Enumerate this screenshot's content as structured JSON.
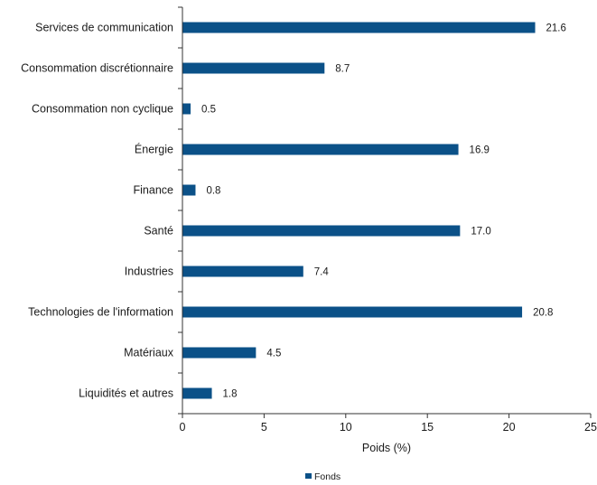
{
  "chart_data": {
    "type": "bar",
    "orientation": "horizontal",
    "categories": [
      "Services de communication",
      "Consommation discrétionnaire",
      "Consommation non cyclique",
      "Énergie",
      "Finance",
      "Santé",
      "Industries",
      "Technologies de l'information",
      "Matériaux",
      "Liquidités et autres"
    ],
    "series": [
      {
        "name": "Fonds",
        "color": "#0b5188",
        "values": [
          21.6,
          8.7,
          0.5,
          16.9,
          0.8,
          17.0,
          7.4,
          20.8,
          4.5,
          1.8
        ],
        "labels": [
          "21.6",
          "8.7",
          "0.5",
          "16.9",
          "0.8",
          "17.0",
          "7.4",
          "20.8",
          "4.5",
          "1.8"
        ]
      }
    ],
    "xlabel": "Poids (%)",
    "xlim": [
      0,
      25
    ],
    "xticks": [
      0,
      5,
      10,
      15,
      20,
      25
    ],
    "xtick_labels": [
      "0",
      "5",
      "10",
      "15",
      "20",
      "25"
    ],
    "grid": false,
    "legend": "bottom-center"
  }
}
